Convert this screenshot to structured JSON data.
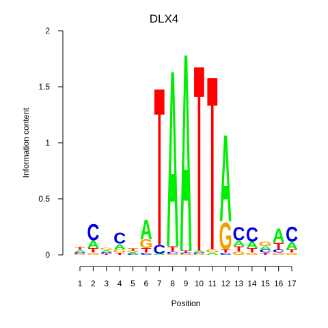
{
  "chart_data": {
    "type": "sequence-logo",
    "title": "DLX4",
    "xlabel": "Position",
    "ylabel": "Information content",
    "ylim": [
      0,
      2
    ],
    "y_ticks": [
      0,
      0.5,
      1,
      1.5,
      2
    ],
    "y_tick_labels": [
      "0",
      "0.5",
      "1",
      "1.5",
      "2"
    ],
    "x_tick_labels": [
      "1",
      "2",
      "3",
      "4",
      "5",
      "6",
      "7",
      "8",
      "9",
      "10",
      "11",
      "12",
      "13",
      "14",
      "15",
      "16",
      "17"
    ],
    "colors": {
      "A": "#00ee00",
      "C": "#0000ee",
      "G": "#f5a000",
      "T": "#ff0000"
    },
    "positions": [
      [
        {
          "b": "G",
          "h": 0.01
        },
        {
          "b": "C",
          "h": 0.015
        },
        {
          "b": "A",
          "h": 0.02
        },
        {
          "b": "T",
          "h": 0.025
        }
      ],
      [
        {
          "b": "G",
          "h": 0.02
        },
        {
          "b": "T",
          "h": 0.04
        },
        {
          "b": "A",
          "h": 0.07
        },
        {
          "b": "C",
          "h": 0.15
        }
      ],
      [
        {
          "b": "T",
          "h": 0.01
        },
        {
          "b": "C",
          "h": 0.015
        },
        {
          "b": "A",
          "h": 0.02
        },
        {
          "b": "G",
          "h": 0.02
        }
      ],
      [
        {
          "b": "T",
          "h": 0.02
        },
        {
          "b": "G",
          "h": 0.03
        },
        {
          "b": "A",
          "h": 0.05
        },
        {
          "b": "C",
          "h": 0.1
        }
      ],
      [
        {
          "b": "C",
          "h": 0.01
        },
        {
          "b": "A",
          "h": 0.015
        },
        {
          "b": "G",
          "h": 0.015
        },
        {
          "b": "T",
          "h": 0.02
        }
      ],
      [
        {
          "b": "C",
          "h": 0.02
        },
        {
          "b": "T",
          "h": 0.04
        },
        {
          "b": "G",
          "h": 0.08
        },
        {
          "b": "A",
          "h": 0.18
        }
      ],
      [
        {
          "b": "A",
          "h": 0.01
        },
        {
          "b": "C",
          "h": 0.08
        },
        {
          "b": "T",
          "h": 1.45
        }
      ],
      [
        {
          "b": "G",
          "h": 0.01
        },
        {
          "b": "C",
          "h": 0.02
        },
        {
          "b": "T",
          "h": 0.05
        },
        {
          "b": "A",
          "h": 1.62
        }
      ],
      [
        {
          "b": "G",
          "h": 0.01
        },
        {
          "b": "C",
          "h": 0.01
        },
        {
          "b": "T",
          "h": 0.02
        },
        {
          "b": "A",
          "h": 1.82
        }
      ],
      [
        {
          "b": "G",
          "h": 0.01
        },
        {
          "b": "C",
          "h": 0.01
        },
        {
          "b": "A",
          "h": 0.02
        },
        {
          "b": "T",
          "h": 1.71
        }
      ],
      [
        {
          "b": "A",
          "h": 0.02
        },
        {
          "b": "G",
          "h": 0.03
        },
        {
          "b": "T",
          "h": 1.6
        }
      ],
      [
        {
          "b": "C",
          "h": 0.02
        },
        {
          "b": "T",
          "h": 0.03
        },
        {
          "b": "G",
          "h": 0.25
        },
        {
          "b": "A",
          "h": 0.8
        }
      ],
      [
        {
          "b": "G",
          "h": 0.03
        },
        {
          "b": "T",
          "h": 0.05
        },
        {
          "b": "A",
          "h": 0.05
        },
        {
          "b": "C",
          "h": 0.12
        }
      ],
      [
        {
          "b": "G",
          "h": 0.02
        },
        {
          "b": "T",
          "h": 0.04
        },
        {
          "b": "A",
          "h": 0.06
        },
        {
          "b": "C",
          "h": 0.13
        }
      ],
      [
        {
          "b": "T",
          "h": 0.02
        },
        {
          "b": "C",
          "h": 0.03
        },
        {
          "b": "A",
          "h": 0.03
        },
        {
          "b": "G",
          "h": 0.04
        }
      ],
      [
        {
          "b": "G",
          "h": 0.02
        },
        {
          "b": "C",
          "h": 0.03
        },
        {
          "b": "T",
          "h": 0.06
        },
        {
          "b": "A",
          "h": 0.13
        }
      ],
      [
        {
          "b": "G",
          "h": 0.02
        },
        {
          "b": "T",
          "h": 0.03
        },
        {
          "b": "A",
          "h": 0.07
        },
        {
          "b": "C",
          "h": 0.14
        }
      ]
    ]
  }
}
